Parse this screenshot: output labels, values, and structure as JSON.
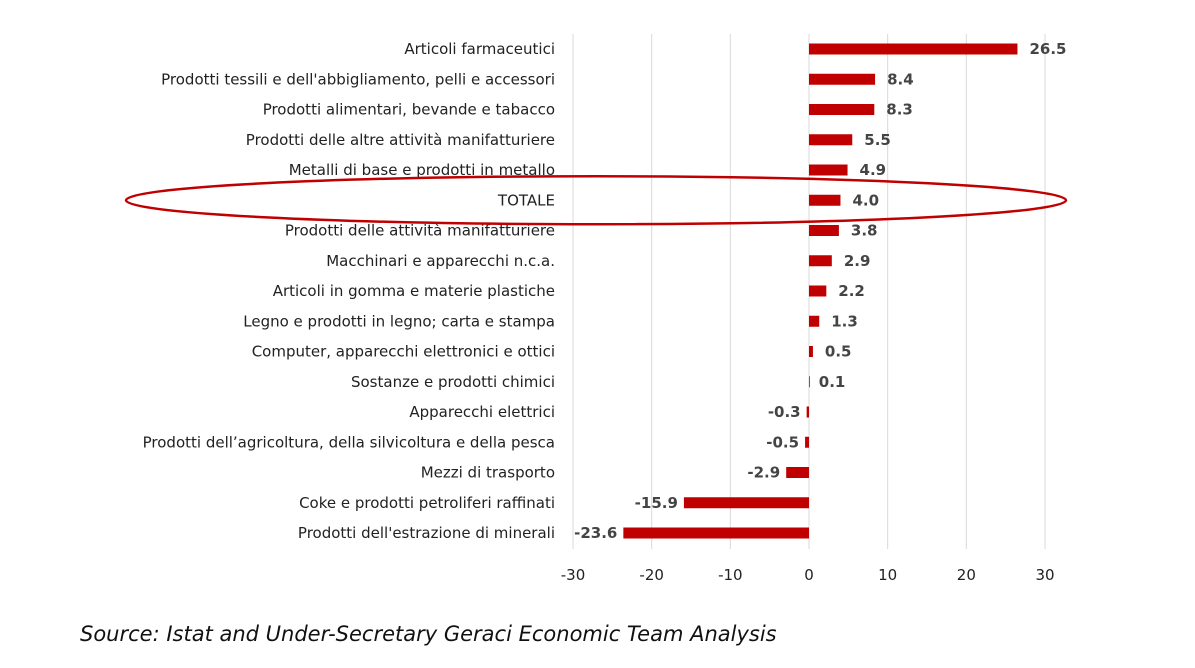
{
  "chart_data": {
    "type": "bar",
    "orientation": "horizontal",
    "categories": [
      "Articoli farmaceutici",
      "Prodotti tessili e dell'abbigliamento, pelli e accessori",
      "Prodotti alimentari, bevande e tabacco",
      "Prodotti delle altre attività manifatturiere",
      "Metalli di base e prodotti in metallo",
      "TOTALE",
      "Prodotti delle attività manifatturiere",
      "Macchinari e apparecchi n.c.a.",
      "Articoli in gomma e materie plastiche",
      "Legno e prodotti in legno; carta e stampa",
      "Computer, apparecchi elettronici e ottici",
      "Sostanze e prodotti chimici",
      "Apparecchi elettrici",
      "Prodotti dell’agricoltura, della silvicoltura e della pesca",
      "Mezzi di trasporto",
      "Coke e prodotti petroliferi raffinati",
      "Prodotti dell'estrazione di minerali"
    ],
    "values": [
      26.5,
      8.4,
      8.3,
      5.5,
      4.9,
      4.0,
      3.8,
      2.9,
      2.2,
      1.3,
      0.5,
      0.1,
      -0.3,
      -0.5,
      -2.9,
      -15.9,
      -23.6
    ],
    "value_labels": [
      "26.5",
      "8.4",
      "8.3",
      "5.5",
      "4.9",
      "4.0",
      "3.8",
      "2.9",
      "2.2",
      "1.3",
      "0.5",
      "0.1",
      "-0.3",
      "-0.5",
      "-2.9",
      "-15.9",
      "-23.6"
    ],
    "x_ticks": [
      -30,
      -20,
      -10,
      0,
      10,
      20,
      30
    ],
    "x_tick_labels": [
      "-30",
      "-20",
      "-10",
      "0",
      "10",
      "20",
      "30"
    ],
    "xlim": [
      -30,
      30
    ],
    "grid": true,
    "bar_color": "#c00000",
    "highlight_color": "#c00000",
    "highlighted_category": "TOTALE",
    "title": "",
    "xlabel": "",
    "ylabel": ""
  },
  "source_note": "Source: Istat and Under-Secretary Geraci Economic Team Analysis"
}
